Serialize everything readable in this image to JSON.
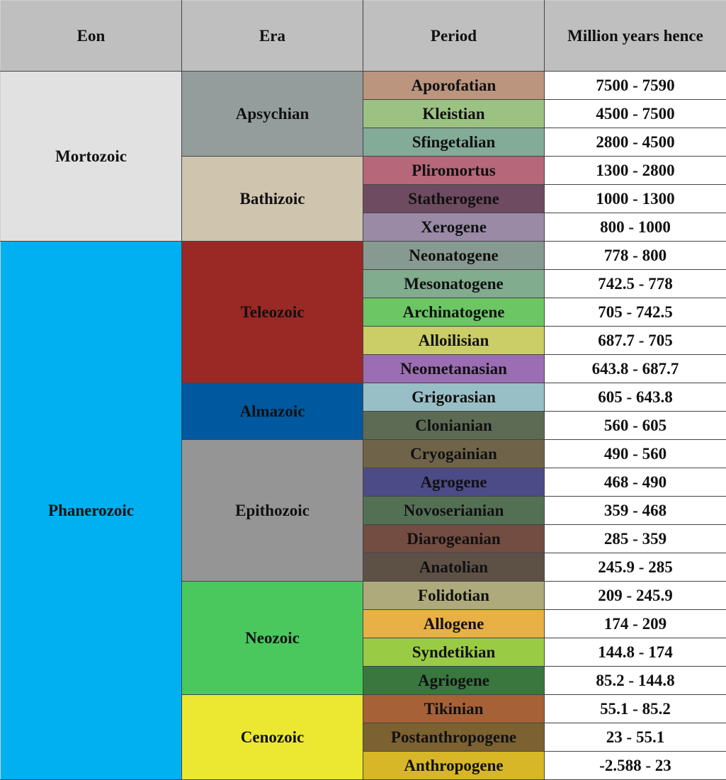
{
  "table": {
    "headers": {
      "eon": "Eon",
      "era": "Era",
      "period": "Period",
      "range": "Million years hence"
    },
    "header_color": "#bfbfbf",
    "eons": [
      {
        "name": "Mortozoic",
        "color": "#e1e1e1",
        "rows": 6
      },
      {
        "name": "Phanerozoic",
        "color": "#00b0f0",
        "rows": 19
      }
    ],
    "eras": [
      {
        "name": "Apsychian",
        "color": "#949d9c",
        "rows": 3
      },
      {
        "name": "Bathizoic",
        "color": "#cfc4ae",
        "rows": 3
      },
      {
        "name": "Teleozoic",
        "color": "#9a2825",
        "rows": 5
      },
      {
        "name": "Almazoic",
        "color": "#00589e",
        "rows": 2
      },
      {
        "name": "Epithozoic",
        "color": "#959595",
        "rows": 5
      },
      {
        "name": "Neozoic",
        "color": "#4ac85e",
        "rows": 4
      },
      {
        "name": "Cenozoic",
        "color": "#ece832",
        "rows": 3
      }
    ],
    "periods": [
      {
        "name": "Aporofatian",
        "range": "7500 - 7590",
        "color": "#bc957e"
      },
      {
        "name": "Kleistian",
        "range": "4500 - 7500",
        "color": "#9cc283"
      },
      {
        "name": "Sfingetalian",
        "range": "2800 - 4500",
        "color": "#82ab98"
      },
      {
        "name": "Pliromortus",
        "range": "1300 - 2800",
        "color": "#b7677a"
      },
      {
        "name": "Statherogene",
        "range": "1000 - 1300",
        "color": "#6e4b60"
      },
      {
        "name": "Xerogene",
        "range": "800 - 1000",
        "color": "#9a8aa6"
      },
      {
        "name": "Neonatogene",
        "range": "778 - 800",
        "color": "#879a92"
      },
      {
        "name": "Mesonatogene",
        "range": "742.5 - 778",
        "color": "#81ac8e"
      },
      {
        "name": "Archinatogene",
        "range": "705 - 742.5",
        "color": "#6cc664"
      },
      {
        "name": "Alloilisian",
        "range": "687.7 - 705",
        "color": "#cbcd66"
      },
      {
        "name": "Neometanasian",
        "range": "643.8 - 687.7",
        "color": "#9b6db2"
      },
      {
        "name": "Grigorasian",
        "range": "605 - 643.8",
        "color": "#98bfc6"
      },
      {
        "name": "Clonianian",
        "range": "560 - 605",
        "color": "#5d6b55"
      },
      {
        "name": "Cryogainian",
        "range": "490 - 560",
        "color": "#6f644a"
      },
      {
        "name": "Agrogene",
        "range": "468 - 490",
        "color": "#4c4b88"
      },
      {
        "name": "Novoserianian",
        "range": "359 - 468",
        "color": "#547054"
      },
      {
        "name": "Diarogeanian",
        "range": "285 - 359",
        "color": "#734c42"
      },
      {
        "name": "Anatolian",
        "range": "245.9 - 285",
        "color": "#5d5146"
      },
      {
        "name": "Folidotian",
        "range": "209 - 245.9",
        "color": "#aeaa7b"
      },
      {
        "name": "Allogene",
        "range": "174 - 209",
        "color": "#e8b045"
      },
      {
        "name": "Syndetikian",
        "range": "144.8 - 174",
        "color": "#9acb45"
      },
      {
        "name": "Agriogene",
        "range": "85.2 - 144.8",
        "color": "#39773f"
      },
      {
        "name": "Tikinian",
        "range": "55.1 - 85.2",
        "color": "#a66137"
      },
      {
        "name": "Postanthropogene",
        "range": "23 - 55.1",
        "color": "#7c6131"
      },
      {
        "name": "Anthropogene",
        "range": "-2.588 - 23",
        "color": "#d7b727"
      }
    ]
  }
}
